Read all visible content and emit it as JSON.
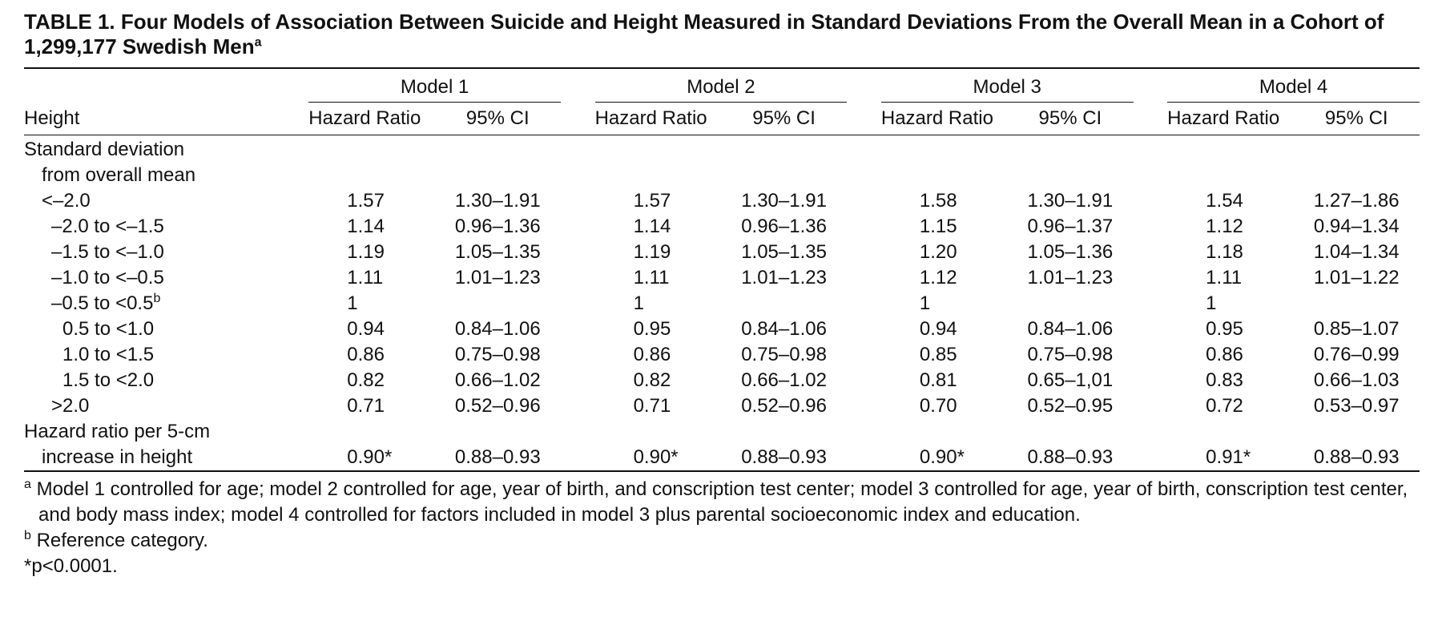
{
  "title": {
    "text": "TABLE 1. Four Models of Association Between Suicide and Height Measured in Standard Deviations From the Overall Mean in a Cohort of 1,299,177 Swedish Men",
    "sup": "a"
  },
  "columns": {
    "row_header": "Height",
    "models": [
      "Model 1",
      "Model 2",
      "Model 3",
      "Model 4"
    ],
    "hr_label": "Hazard Ratio",
    "ci_label": "95% CI"
  },
  "rows": [
    {
      "label": "Standard deviation",
      "indent": 0,
      "cells": []
    },
    {
      "label": "from overall mean",
      "indent": 1,
      "cells": []
    },
    {
      "label": "<–2.0",
      "indent": 1,
      "cells": [
        "1.57",
        "1.30–1.91",
        "1.57",
        "1.30–1.91",
        "1.58",
        "1.30–1.91",
        "1.54",
        "1.27–1.86"
      ]
    },
    {
      "label": "–2.0 to <–1.5",
      "indent": 2,
      "cells": [
        "1.14",
        "0.96–1.36",
        "1.14",
        "0.96–1.36",
        "1.15",
        "0.96–1.37",
        "1.12",
        "0.94–1.34"
      ]
    },
    {
      "label": "–1.5 to <–1.0",
      "indent": 2,
      "cells": [
        "1.19",
        "1.05–1.35",
        "1.19",
        "1.05–1.35",
        "1.20",
        "1.05–1.36",
        "1.18",
        "1.04–1.34"
      ]
    },
    {
      "label": "–1.0 to <–0.5",
      "indent": 2,
      "cells": [
        "1.11",
        "1.01–1.23",
        "1.11",
        "1.01–1.23",
        "1.12",
        "1.01–1.23",
        "1.11",
        "1.01–1.22"
      ]
    },
    {
      "label": "–0.5 to <0.5",
      "sup": "b",
      "indent": 2,
      "cells": [
        "1",
        "",
        "1",
        "",
        "1",
        "",
        "1",
        ""
      ]
    },
    {
      "label": "0.5 to <1.0",
      "indent": 3,
      "cells": [
        "0.94",
        "0.84–1.06",
        "0.95",
        "0.84–1.06",
        "0.94",
        "0.84–1.06",
        "0.95",
        "0.85–1.07"
      ]
    },
    {
      "label": "1.0 to <1.5",
      "indent": 3,
      "cells": [
        "0.86",
        "0.75–0.98",
        "0.86",
        "0.75–0.98",
        "0.85",
        "0.75–0.98",
        "0.86",
        "0.76–0.99"
      ]
    },
    {
      "label": "1.5 to <2.0",
      "indent": 3,
      "cells": [
        "0.82",
        "0.66–1.02",
        "0.82",
        "0.66–1.02",
        "0.81",
        "0.65–1,01",
        "0.83",
        "0.66–1.03"
      ]
    },
    {
      "label": ">2.0",
      "indent": 2,
      "cells": [
        "0.71",
        "0.52–0.96",
        "0.71",
        "0.52–0.96",
        "0.70",
        "0.52–0.95",
        "0.72",
        "0.53–0.97"
      ]
    },
    {
      "label": "Hazard ratio per 5-cm",
      "indent": 0,
      "cells": []
    },
    {
      "label": "increase in height",
      "indent": 1,
      "cells": [
        "0.90*",
        "0.88–0.93",
        "0.90*",
        "0.88–0.93",
        "0.90*",
        "0.88–0.93",
        "0.91*",
        "0.88–0.93"
      ]
    }
  ],
  "notes": [
    {
      "marker": "a",
      "text": "Model 1 controlled for age; model 2 controlled for age, year of birth, and conscription test center; model 3 controlled for age, year of birth, conscription test center, and body mass index; model 4 controlled for factors included in model 3 plus parental socioeconomic index and education."
    },
    {
      "marker": "b",
      "text": "Reference category."
    },
    {
      "marker": "",
      "text": "*p<0.0001."
    }
  ]
}
